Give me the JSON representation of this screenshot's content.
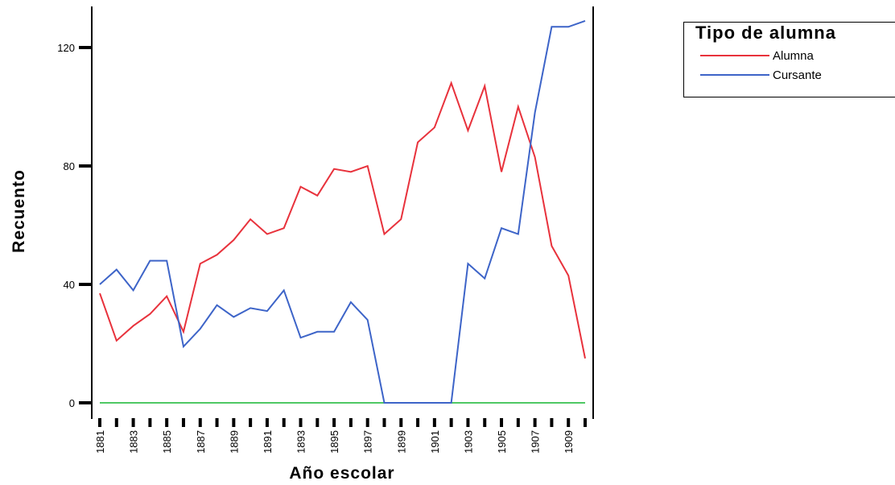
{
  "chart_data": {
    "type": "line",
    "x": [
      1881,
      1882,
      1883,
      1884,
      1885,
      1886,
      1887,
      1888,
      1889,
      1890,
      1891,
      1892,
      1893,
      1894,
      1895,
      1896,
      1897,
      1898,
      1899,
      1900,
      1901,
      1902,
      1903,
      1904,
      1905,
      1906,
      1907,
      1908,
      1909,
      1910
    ],
    "x_tick_labels": [
      "1881",
      "1883",
      "1885",
      "1887",
      "1889",
      "1891",
      "1893",
      "1895",
      "1897",
      "1899",
      "1901",
      "1903",
      "1905",
      "1907",
      "1909"
    ],
    "y_tick_labels": [
      "0",
      "40",
      "80",
      "120"
    ],
    "ylim": [
      0,
      130
    ],
    "xlabel": "Año escolar",
    "ylabel": "Recuento",
    "legend_title": "Tipo de alumna",
    "legend_position": "top-right",
    "grid": false,
    "series": [
      {
        "name": "Alumna",
        "color": "#e8323c",
        "values": [
          37,
          21,
          26,
          30,
          36,
          24,
          47,
          50,
          55,
          62,
          57,
          59,
          73,
          70,
          79,
          78,
          80,
          57,
          62,
          88,
          93,
          108,
          92,
          107,
          78,
          100,
          83,
          53,
          43,
          15
        ]
      },
      {
        "name": "Cursante",
        "color": "#3d64c8",
        "values": [
          40,
          45,
          38,
          48,
          48,
          19,
          25,
          33,
          29,
          32,
          31,
          38,
          22,
          24,
          24,
          34,
          28,
          0,
          0,
          0,
          0,
          0,
          47,
          42,
          59,
          57,
          98,
          127,
          127,
          129
        ]
      },
      {
        "name": "",
        "color": "#4fc864",
        "values": [
          0,
          0,
          0,
          0,
          0,
          0,
          0,
          0,
          0,
          0,
          0,
          0,
          0,
          0,
          0,
          0,
          0,
          0,
          0,
          0,
          0,
          0,
          0,
          0,
          0,
          0,
          0,
          0,
          0,
          0
        ]
      }
    ]
  }
}
